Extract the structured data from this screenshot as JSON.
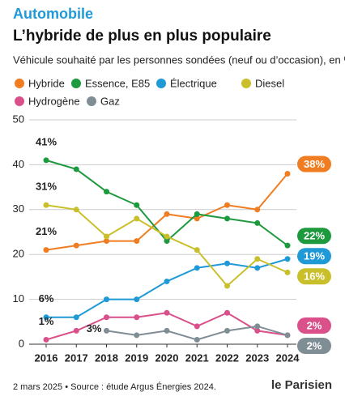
{
  "chart_data": {
    "type": "line",
    "kicker": "Automobile",
    "title": "L’hybride de plus en plus populaire",
    "subtitle": "Véhicule souhaité par les personnes sondées (neuf ou d’occasion), en %",
    "categories": [
      "2016",
      "2017",
      "2018",
      "2019",
      "2020",
      "2021",
      "2022",
      "2023",
      "2024"
    ],
    "series": [
      {
        "name": "Hybride",
        "color": "#f07d22",
        "values": [
          21,
          22,
          23,
          23,
          29,
          28,
          31,
          30,
          38
        ],
        "value_labels": [
          "21%",
          null,
          null,
          null,
          null,
          null,
          null,
          null,
          "38%"
        ]
      },
      {
        "name": "Essence, E85",
        "color": "#1e9a3e",
        "values": [
          41,
          39,
          34,
          31,
          23,
          29,
          28,
          27,
          22
        ],
        "value_labels": [
          "41%",
          null,
          null,
          null,
          null,
          null,
          null,
          null,
          "22%"
        ]
      },
      {
        "name": "Électrique",
        "color": "#1f9ad6",
        "values": [
          6,
          6,
          10,
          10,
          14,
          17,
          18,
          17,
          19
        ],
        "value_labels": [
          "6%",
          null,
          null,
          null,
          null,
          null,
          null,
          null,
          "19%"
        ]
      },
      {
        "name": "Diesel",
        "color": "#c9bf2a",
        "values": [
          31,
          30,
          24,
          28,
          24,
          21,
          13,
          19,
          16
        ],
        "value_labels": [
          "31%",
          null,
          null,
          null,
          null,
          null,
          null,
          null,
          "16%"
        ]
      },
      {
        "name": "Hydrogène",
        "color": "#d9508a",
        "values": [
          1,
          3,
          6,
          6,
          7,
          4,
          7,
          3,
          2
        ],
        "value_labels": [
          "1%",
          null,
          null,
          null,
          null,
          null,
          null,
          null,
          "2%"
        ]
      },
      {
        "name": "Gaz",
        "color": "#7f8d94",
        "values": [
          null,
          null,
          3,
          2,
          3,
          1,
          3,
          4,
          2
        ],
        "value_labels": [
          null,
          null,
          "3%",
          null,
          null,
          null,
          null,
          null,
          "2%"
        ]
      }
    ],
    "ylim": [
      0,
      50
    ],
    "yticks": [
      0,
      10,
      20,
      30,
      40,
      50
    ],
    "grid": true
  },
  "footer": {
    "source": "2 mars 2025 • Source : étude Argus Énergies 2024.",
    "logo": "le Parisien"
  }
}
